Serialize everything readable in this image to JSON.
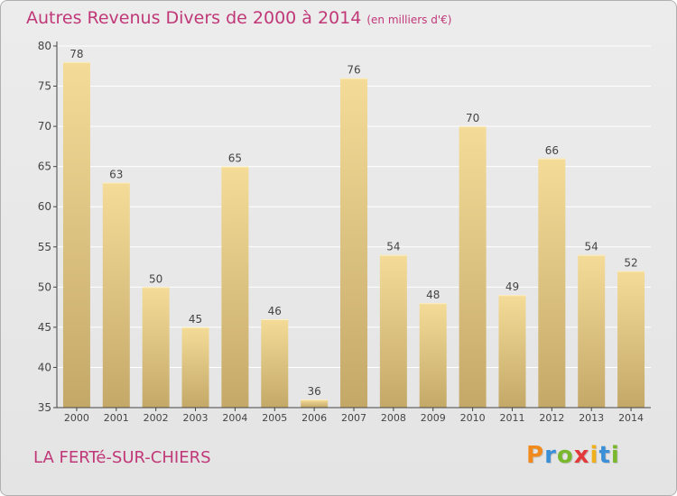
{
  "header": {
    "title": "Autres Revenus Divers de 2000 à 2014",
    "subtitle": "(en milliers d'€)"
  },
  "footer": {
    "place": "LA FERTé-SUR-CHIERS",
    "logo_letters": [
      "P",
      "r",
      "o",
      "x",
      "i",
      "t",
      "i"
    ],
    "logo_colors": [
      "#f08a1c",
      "#3a8fd6",
      "#79b82c",
      "#e23a3a",
      "#f0b01c",
      "#3a8fd6",
      "#79b82c"
    ],
    "logo_icon": "proxiti-logo"
  },
  "chart_data": {
    "type": "bar",
    "title": "Autres Revenus Divers de 2000 à 2014",
    "subtitle": "(en milliers d'€)",
    "xlabel": "",
    "ylabel": "",
    "categories": [
      "2000",
      "2001",
      "2002",
      "2003",
      "2004",
      "2005",
      "2006",
      "2007",
      "2008",
      "2009",
      "2010",
      "2011",
      "2012",
      "2013",
      "2014"
    ],
    "values": [
      78,
      63,
      50,
      45,
      65,
      46,
      36,
      76,
      54,
      48,
      70,
      49,
      66,
      54,
      52
    ],
    "ylim": [
      35,
      80
    ],
    "yticks": [
      35,
      40,
      45,
      50,
      55,
      60,
      65,
      70,
      75,
      80
    ],
    "grid": true,
    "colors": {
      "bar_light": "#f4dc98",
      "bar_dark": "#c4a868",
      "grid": "#ffffff",
      "axis": "#444444",
      "text": "#444444",
      "accent": "#c03878"
    }
  }
}
